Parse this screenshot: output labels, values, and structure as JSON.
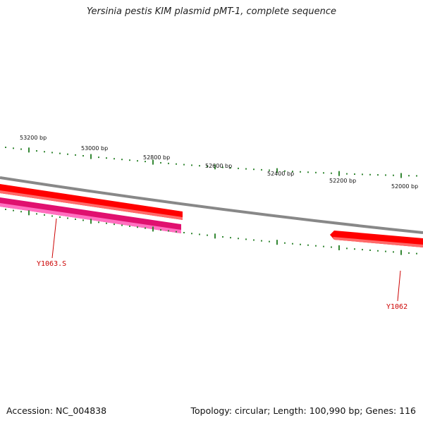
{
  "title": "Yersinia pestis KIM plasmid pMT-1, complete sequence",
  "footer": {
    "accession": "Accession: NC_004838",
    "summary": "Topology: circular; Length: 100,990 bp; Genes: 116"
  },
  "ruler": {
    "labels": [
      "53200 bp",
      "53000 bp",
      "52800 bp",
      "52600 bp",
      "52400 bp",
      "52200 bp",
      "52000 bp"
    ]
  },
  "genes": [
    {
      "label": "Y1063.S",
      "color": "#e0106f",
      "highlight": "#ff70c0"
    },
    {
      "label": "Y1062",
      "color": "#ff0000",
      "highlight": "#ff6a6a"
    }
  ],
  "colors": {
    "backbone": "#888888",
    "ticks": "#1e7a1e",
    "gene_label": "#cc0000",
    "forward_gene": "#ff0000"
  }
}
